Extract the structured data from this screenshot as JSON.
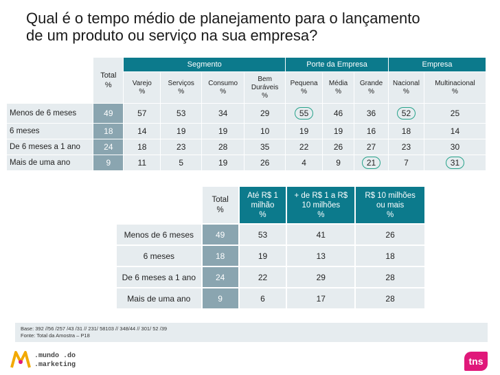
{
  "title": {
    "line1": "Qual é o tempo médio de planejamento para o lançamento",
    "line2": "de um produto ou serviço na sua empresa?"
  },
  "colors": {
    "header_teal": "#0c7a8c",
    "total_col": "#8aa5b0",
    "cell_bg": "#e6ecef",
    "circle": "#26a28a",
    "tns_brand": "#e0187a"
  },
  "table1": {
    "groups": {
      "segmento": "Segmento",
      "porte": "Porte da Empresa",
      "empresa": "Empresa"
    },
    "total_header": {
      "l1": "Total",
      "l2": "%"
    },
    "columns": [
      {
        "l1": "Varejo",
        "l2": "",
        "pct": "%"
      },
      {
        "l1": "Serviços",
        "l2": "",
        "pct": "%"
      },
      {
        "l1": "Consumo",
        "l2": "",
        "pct": "%"
      },
      {
        "l1": "Bem",
        "l2": "Duráveis",
        "pct": "%"
      },
      {
        "l1": "Pequena",
        "l2": "",
        "pct": "%"
      },
      {
        "l1": "Média",
        "l2": "",
        "pct": "%"
      },
      {
        "l1": "Grande",
        "l2": "",
        "pct": "%"
      },
      {
        "l1": "Nacional",
        "l2": "",
        "pct": "%"
      },
      {
        "l1": "Multinacional",
        "l2": "",
        "pct": "%"
      }
    ],
    "rows": [
      {
        "label": "Menos de 6 meses",
        "total": "49",
        "values": [
          "57",
          "53",
          "34",
          "29",
          "55",
          "46",
          "36",
          "52",
          "25"
        ]
      },
      {
        "label": "6 meses",
        "total": "18",
        "values": [
          "14",
          "19",
          "19",
          "10",
          "19",
          "19",
          "16",
          "18",
          "14"
        ]
      },
      {
        "label": "De 6 meses a 1 ano",
        "total": "24",
        "values": [
          "18",
          "23",
          "28",
          "35",
          "22",
          "26",
          "27",
          "23",
          "30"
        ]
      },
      {
        "label": "Mais de uma ano",
        "total": "9",
        "values": [
          "11",
          "5",
          "19",
          "26",
          "4",
          "9",
          "21",
          "7",
          "31"
        ]
      }
    ]
  },
  "table2": {
    "total_header": {
      "l1": "Total",
      "l2": "%"
    },
    "columns": [
      {
        "l1": "Até R$ 1",
        "l2": "milhão",
        "pct": "%"
      },
      {
        "l1": "+ de R$ 1 a R$",
        "l2": "10 milhões",
        "pct": "%"
      },
      {
        "l1": "R$ 10 milhões",
        "l2": "ou mais",
        "pct": "%"
      }
    ],
    "rows": [
      {
        "label": "Menos de 6 meses",
        "total": "49",
        "values": [
          "53",
          "41",
          "26"
        ]
      },
      {
        "label": "6 meses",
        "total": "18",
        "values": [
          "19",
          "13",
          "18"
        ]
      },
      {
        "label": "De 6 meses a 1 ano",
        "total": "24",
        "values": [
          "22",
          "29",
          "28"
        ]
      },
      {
        "label": "Mais de uma ano",
        "total": "9",
        "values": [
          "6",
          "17",
          "28"
        ]
      }
    ]
  },
  "footer": {
    "base": "Base: 392 //56 /257 /43 /31 // 231/ 58103 // 348/44 // 301/ 52 /39",
    "fonte": "Fonte: Total da Amostra – P18"
  },
  "logo": {
    "line1": ".mundo .do",
    "line2": ".marketing"
  },
  "tns": "tns"
}
